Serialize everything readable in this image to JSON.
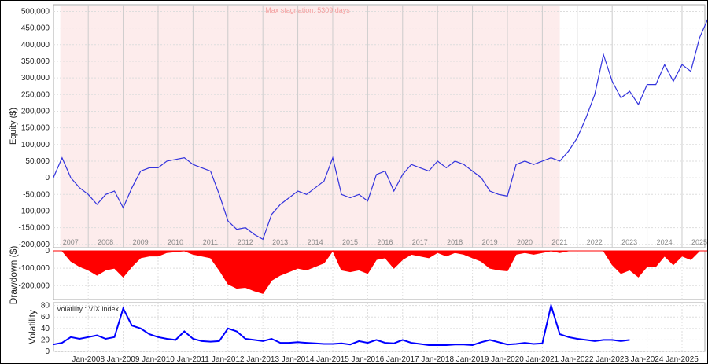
{
  "chart_data": [
    {
      "type": "line",
      "name": "equity",
      "ylabel": "Equity ($)",
      "ylim": [
        -210000,
        520000
      ],
      "yticks": [
        -200000,
        -150000,
        -100000,
        -50000,
        0,
        50000,
        100000,
        150000,
        200000,
        250000,
        300000,
        350000,
        400000,
        450000,
        500000
      ],
      "ytick_labels": [
        "-200,000",
        "-150,000",
        "-100,000",
        "-50,000",
        "0",
        "50,000",
        "100,000",
        "150,000",
        "200,000",
        "250,000",
        "300,000",
        "350,000",
        "400,000",
        "450,000",
        "500,000"
      ],
      "year_labels": [
        "2007",
        "2008",
        "2009",
        "2010",
        "2011",
        "2012",
        "2013",
        "2014",
        "2015",
        "2016",
        "2017",
        "2018",
        "2019",
        "2020",
        "2021",
        "2022",
        "2023",
        "2024",
        "2025"
      ],
      "annotation": "Max stagnation: 5309 days",
      "stagnation_range": [
        2007.2,
        2021.5
      ],
      "x_start": 2007.0,
      "x_step": 0.25,
      "values": [
        0,
        60000,
        0,
        -30000,
        -50000,
        -80000,
        -50000,
        -40000,
        -90000,
        -30000,
        20000,
        30000,
        30000,
        50000,
        55000,
        60000,
        40000,
        30000,
        20000,
        -50000,
        -130000,
        -155000,
        -150000,
        -170000,
        -185000,
        -110000,
        -80000,
        -60000,
        -40000,
        -50000,
        -30000,
        -10000,
        60000,
        -50000,
        -60000,
        -50000,
        -70000,
        10000,
        20000,
        -40000,
        10000,
        40000,
        30000,
        20000,
        50000,
        30000,
        50000,
        40000,
        20000,
        0,
        -40000,
        -50000,
        -55000,
        40000,
        50000,
        40000,
        50000,
        60000,
        50000,
        80000,
        120000,
        180000,
        250000,
        370000,
        290000,
        240000,
        260000,
        220000,
        280000,
        280000,
        340000,
        290000,
        340000,
        320000,
        420000,
        480000
      ],
      "color": "#3333dd",
      "band_color": "#fdecec"
    },
    {
      "type": "area",
      "name": "drawdown",
      "ylabel": "Drawdown ($)",
      "ylim": [
        -280000,
        0
      ],
      "yticks": [
        0,
        -100000,
        -200000
      ],
      "ytick_labels": [
        "0",
        "-100,000",
        "-200,000"
      ],
      "x_start": 2007.0,
      "x_step": 0.25,
      "values": [
        0,
        0,
        -60000,
        -90000,
        -110000,
        -140000,
        -110000,
        -100000,
        -150000,
        -90000,
        -40000,
        -30000,
        -30000,
        -10000,
        -5000,
        0,
        -20000,
        -30000,
        -40000,
        -110000,
        -190000,
        -215000,
        -210000,
        -230000,
        -245000,
        -170000,
        -140000,
        -120000,
        -100000,
        -110000,
        -90000,
        -70000,
        0,
        -110000,
        -120000,
        -110000,
        -130000,
        -50000,
        -40000,
        -100000,
        -50000,
        -20000,
        -30000,
        -40000,
        -10000,
        -30000,
        -10000,
        -20000,
        -40000,
        -60000,
        -100000,
        -110000,
        -115000,
        -20000,
        -10000,
        -20000,
        -10000,
        0,
        -10000,
        0,
        0,
        0,
        0,
        0,
        -80000,
        -130000,
        -110000,
        -150000,
        -90000,
        -90000,
        -30000,
        -80000,
        -30000,
        -50000,
        0,
        0
      ],
      "color": "#ff0000"
    },
    {
      "type": "line",
      "name": "volatility",
      "ylabel": "Volatility",
      "legend": "Volatility : VIX index",
      "ylim": [
        0,
        85
      ],
      "yticks": [
        0,
        20,
        40,
        60,
        80
      ],
      "ytick_labels": [
        "0",
        "20",
        "40",
        "60",
        "80"
      ],
      "x_start": 2007.0,
      "x_step": 0.25,
      "values": [
        12,
        15,
        25,
        22,
        25,
        28,
        22,
        25,
        75,
        45,
        40,
        30,
        25,
        22,
        20,
        35,
        22,
        18,
        17,
        18,
        40,
        35,
        22,
        20,
        18,
        22,
        15,
        15,
        16,
        15,
        14,
        13,
        13,
        14,
        12,
        18,
        15,
        20,
        15,
        14,
        20,
        15,
        13,
        11,
        11,
        11,
        12,
        12,
        11,
        16,
        20,
        16,
        12,
        13,
        15,
        13,
        14,
        80,
        30,
        25,
        22,
        20,
        18,
        20,
        20,
        18,
        20
      ],
      "color": "#0000ff",
      "xtick_labels": [
        "Jan-2008",
        "Jan-2009",
        "Jan-2010",
        "Jan-2011",
        "Jan-2012",
        "Jan-2013",
        "Jan-2014",
        "Jan-2015",
        "Jan-2016",
        "Jan-2017",
        "Jan-2018",
        "Jan-2019",
        "Jan-2020",
        "Jan-2021",
        "Jan-2022",
        "Jan-2023",
        "Jan-2024",
        "Jan-2025"
      ],
      "xtick_years": [
        2008,
        2009,
        2010,
        2011,
        2012,
        2013,
        2014,
        2015,
        2016,
        2017,
        2018,
        2019,
        2020,
        2021,
        2022,
        2023,
        2024,
        2025
      ]
    }
  ]
}
